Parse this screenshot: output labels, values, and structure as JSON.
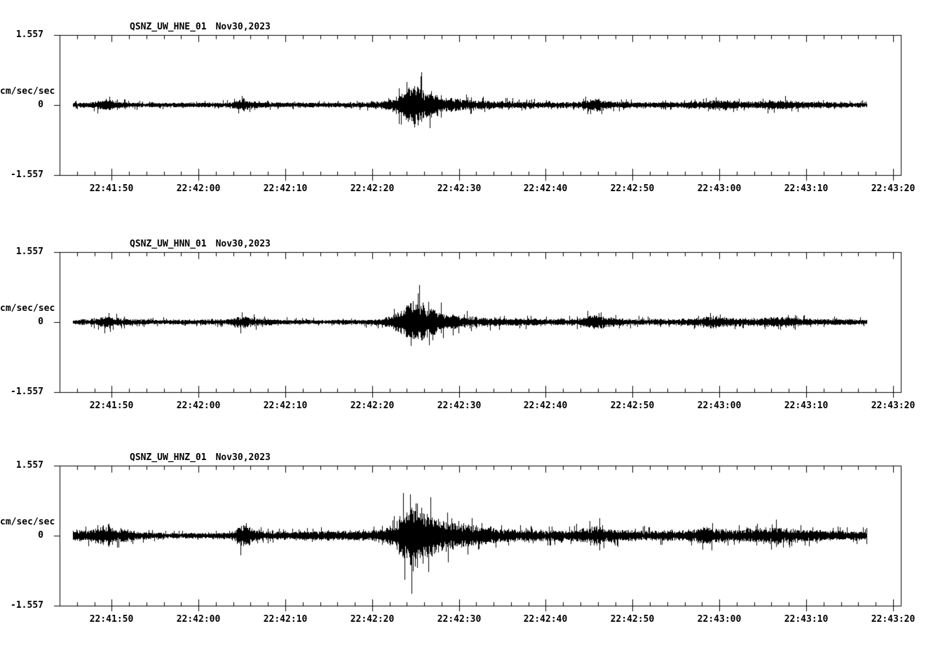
{
  "page": {
    "background": "#ffffff",
    "trace_color": "#000000"
  },
  "chart_data": [
    {
      "type": "line",
      "kind": "seismogram-trace",
      "station": "QSNZ_UW_HNE_01",
      "date": "Nov30,2023",
      "title": "QSNZ_UW_HNE_01   Nov30,2023",
      "ylabel": "cm/sec/sec",
      "y_tick_labels": [
        "1.557",
        "0",
        "-1.557"
      ],
      "y_tick_values": [
        1.557,
        0,
        -1.557
      ],
      "ylim": [
        -1.557,
        1.557
      ],
      "xlim_seconds": [
        0,
        96.9
      ],
      "x_tick_labels": [
        "22:41:50",
        "22:42:00",
        "22:42:10",
        "22:42:20",
        "22:42:30",
        "22:42:40",
        "22:42:50",
        "22:43:00",
        "22:43:10",
        "22:43:20"
      ],
      "x_tick_seconds": [
        6,
        16,
        26,
        36,
        46,
        56,
        66,
        76,
        86,
        96
      ],
      "x_minor_step_seconds": 2,
      "data_span_seconds": [
        1.5,
        93
      ],
      "peak_amplitude": 0.85,
      "envelope_t_amp": [
        [
          1.5,
          0.05
        ],
        [
          3.5,
          0.055
        ],
        [
          4.8,
          0.1
        ],
        [
          5.4,
          0.13
        ],
        [
          6.2,
          0.09
        ],
        [
          7.5,
          0.06
        ],
        [
          10,
          0.05
        ],
        [
          14,
          0.05
        ],
        [
          19.5,
          0.055
        ],
        [
          20.6,
          0.1
        ],
        [
          21.2,
          0.13
        ],
        [
          22,
          0.08
        ],
        [
          23.5,
          0.06
        ],
        [
          27,
          0.05
        ],
        [
          31,
          0.05
        ],
        [
          35,
          0.055
        ],
        [
          37,
          0.07
        ],
        [
          38.5,
          0.14
        ],
        [
          39.5,
          0.28
        ],
        [
          40.2,
          0.4
        ],
        [
          40.8,
          0.45
        ],
        [
          41.5,
          0.38
        ],
        [
          42.3,
          0.3
        ],
        [
          43.2,
          0.26
        ],
        [
          44,
          0.18
        ],
        [
          45.5,
          0.13
        ],
        [
          47,
          0.11
        ],
        [
          49,
          0.09
        ],
        [
          52,
          0.075
        ],
        [
          55,
          0.065
        ],
        [
          58,
          0.06
        ],
        [
          60,
          0.07
        ],
        [
          61,
          0.11
        ],
        [
          61.8,
          0.14
        ],
        [
          62.6,
          0.1
        ],
        [
          64,
          0.075
        ],
        [
          66,
          0.06
        ],
        [
          69,
          0.06
        ],
        [
          72,
          0.065
        ],
        [
          74,
          0.08
        ],
        [
          75.5,
          0.11
        ],
        [
          76.5,
          0.1
        ],
        [
          78,
          0.08
        ],
        [
          80,
          0.07
        ],
        [
          81.5,
          0.09
        ],
        [
          83,
          0.11
        ],
        [
          84.5,
          0.09
        ],
        [
          86,
          0.07
        ],
        [
          89,
          0.06
        ],
        [
          91,
          0.055
        ],
        [
          93,
          0.05
        ]
      ]
    },
    {
      "type": "line",
      "kind": "seismogram-trace",
      "station": "QSNZ_UW_HNN_01",
      "date": "Nov30,2023",
      "title": "QSNZ_UW_HNN_01   Nov30,2023",
      "ylabel": "cm/sec/sec",
      "y_tick_labels": [
        "1.557",
        "0",
        "-1.557"
      ],
      "y_tick_values": [
        1.557,
        0,
        -1.557
      ],
      "ylim": [
        -1.557,
        1.557
      ],
      "xlim_seconds": [
        0,
        96.9
      ],
      "x_tick_labels": [
        "22:41:50",
        "22:42:00",
        "22:42:10",
        "22:42:20",
        "22:42:30",
        "22:42:40",
        "22:42:50",
        "22:43:00",
        "22:43:10",
        "22:43:20"
      ],
      "x_tick_seconds": [
        6,
        16,
        26,
        36,
        46,
        56,
        66,
        76,
        86,
        96
      ],
      "x_minor_step_seconds": 2,
      "data_span_seconds": [
        1.5,
        93
      ],
      "peak_amplitude": 1.0,
      "envelope_t_amp": [
        [
          1.5,
          0.05
        ],
        [
          3.5,
          0.06
        ],
        [
          4.8,
          0.1
        ],
        [
          5.5,
          0.14
        ],
        [
          6.3,
          0.09
        ],
        [
          8,
          0.06
        ],
        [
          11,
          0.05
        ],
        [
          15,
          0.05
        ],
        [
          19.5,
          0.06
        ],
        [
          20.6,
          0.12
        ],
        [
          21.3,
          0.16
        ],
        [
          22.2,
          0.09
        ],
        [
          24,
          0.06
        ],
        [
          28,
          0.05
        ],
        [
          32,
          0.05
        ],
        [
          35,
          0.055
        ],
        [
          37,
          0.07
        ],
        [
          38.5,
          0.15
        ],
        [
          39.6,
          0.3
        ],
        [
          40.3,
          0.44
        ],
        [
          40.9,
          0.5
        ],
        [
          41.6,
          0.42
        ],
        [
          42.4,
          0.32
        ],
        [
          43.3,
          0.27
        ],
        [
          44.2,
          0.19
        ],
        [
          45.5,
          0.14
        ],
        [
          47,
          0.12
        ],
        [
          49,
          0.1
        ],
        [
          52,
          0.08
        ],
        [
          55,
          0.07
        ],
        [
          58,
          0.065
        ],
        [
          60,
          0.08
        ],
        [
          61,
          0.13
        ],
        [
          61.9,
          0.16
        ],
        [
          62.8,
          0.11
        ],
        [
          64.5,
          0.08
        ],
        [
          67,
          0.065
        ],
        [
          70,
          0.06
        ],
        [
          72.5,
          0.07
        ],
        [
          74,
          0.1
        ],
        [
          75.3,
          0.13
        ],
        [
          76.5,
          0.1
        ],
        [
          78,
          0.08
        ],
        [
          80,
          0.08
        ],
        [
          81.5,
          0.1
        ],
        [
          83,
          0.11
        ],
        [
          84.5,
          0.09
        ],
        [
          86.5,
          0.07
        ],
        [
          89,
          0.065
        ],
        [
          91,
          0.06
        ],
        [
          93,
          0.055
        ]
      ]
    },
    {
      "type": "line",
      "kind": "seismogram-trace",
      "station": "QSNZ_UW_HNZ_01",
      "date": "Nov30,2023",
      "title": "QSNZ_UW_HNZ_01   Nov30,2023",
      "ylabel": "cm/sec/sec",
      "y_tick_labels": [
        "1.557",
        "0",
        "-1.557"
      ],
      "y_tick_values": [
        1.557,
        0,
        -1.557
      ],
      "ylim": [
        -1.557,
        1.557
      ],
      "xlim_seconds": [
        0,
        96.9
      ],
      "x_tick_labels": [
        "22:41:50",
        "22:42:00",
        "22:42:10",
        "22:42:20",
        "22:42:30",
        "22:42:40",
        "22:42:50",
        "22:43:00",
        "22:43:10",
        "22:43:20"
      ],
      "x_tick_seconds": [
        6,
        16,
        26,
        36,
        46,
        56,
        66,
        76,
        86,
        96
      ],
      "x_minor_step_seconds": 2,
      "data_span_seconds": [
        1.5,
        93
      ],
      "peak_amplitude": 1.45,
      "envelope_t_amp": [
        [
          1.5,
          0.1
        ],
        [
          3,
          0.11
        ],
        [
          4.6,
          0.16
        ],
        [
          5.5,
          0.24
        ],
        [
          6.3,
          0.17
        ],
        [
          7.3,
          0.13
        ],
        [
          8.5,
          0.1
        ],
        [
          10,
          0.07
        ],
        [
          12,
          0.06
        ],
        [
          15,
          0.055
        ],
        [
          18,
          0.06
        ],
        [
          19.8,
          0.08
        ],
        [
          20.8,
          0.22
        ],
        [
          21.4,
          0.26
        ],
        [
          22.2,
          0.14
        ],
        [
          23.5,
          0.1
        ],
        [
          25,
          0.09
        ],
        [
          27,
          0.09
        ],
        [
          29,
          0.1
        ],
        [
          31,
          0.1
        ],
        [
          33,
          0.1
        ],
        [
          35,
          0.11
        ],
        [
          37,
          0.13
        ],
        [
          38.3,
          0.22
        ],
        [
          39.3,
          0.4
        ],
        [
          40.1,
          0.58
        ],
        [
          40.7,
          0.72
        ],
        [
          41.4,
          0.62
        ],
        [
          42.2,
          0.5
        ],
        [
          43.1,
          0.42
        ],
        [
          44,
          0.32
        ],
        [
          45,
          0.27
        ],
        [
          46.5,
          0.23
        ],
        [
          48,
          0.19
        ],
        [
          50,
          0.16
        ],
        [
          52,
          0.14
        ],
        [
          54,
          0.12
        ],
        [
          56,
          0.11
        ],
        [
          58,
          0.11
        ],
        [
          60,
          0.13
        ],
        [
          61,
          0.18
        ],
        [
          61.9,
          0.21
        ],
        [
          62.9,
          0.14
        ],
        [
          64.5,
          0.12
        ],
        [
          66.5,
          0.11
        ],
        [
          69,
          0.1
        ],
        [
          71.5,
          0.12
        ],
        [
          73.5,
          0.15
        ],
        [
          74.6,
          0.18
        ],
        [
          76,
          0.14
        ],
        [
          77.5,
          0.12
        ],
        [
          79.5,
          0.13
        ],
        [
          81,
          0.16
        ],
        [
          82.5,
          0.17
        ],
        [
          84,
          0.14
        ],
        [
          86,
          0.12
        ],
        [
          88,
          0.11
        ],
        [
          90,
          0.1
        ],
        [
          92,
          0.095
        ],
        [
          93,
          0.09
        ]
      ]
    }
  ]
}
